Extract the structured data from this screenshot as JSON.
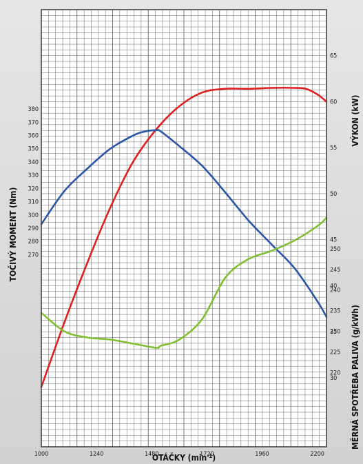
{
  "chart_data": {
    "type": "line",
    "x_axis": {
      "label": "OTÁČKY",
      "unit_base": "min",
      "unit_sup": "-1",
      "range": [
        1000,
        2240
      ],
      "ticks": [
        1000,
        1240,
        1480,
        1720,
        1960,
        2200
      ]
    },
    "power_axis": {
      "label": "VÝKON (kW)",
      "range": [
        22.5,
        70
      ],
      "ticks": [
        30,
        35,
        40,
        45,
        50,
        55,
        60,
        65
      ]
    },
    "torque_axis": {
      "label": "TOČIVÝ MOMENT (Nm)",
      "range": [
        125,
        455
      ],
      "ticks": [
        270,
        280,
        290,
        300,
        310,
        320,
        330,
        340,
        350,
        360,
        370,
        380
      ]
    },
    "consumption_axis": {
      "label": "MĚRNÁ SPOTŘEBA PALIVA (g/kWh)",
      "range": [
        202,
        308
      ],
      "ticks": [
        220,
        225,
        230,
        235,
        240,
        245,
        250
      ]
    },
    "series": [
      {
        "key": "power",
        "axis": "power_axis",
        "color": "#e02020",
        "x": [
          1000,
          1100,
          1200,
          1300,
          1400,
          1500,
          1600,
          1700,
          1800,
          1900,
          2000,
          2100,
          2150,
          2200,
          2240
        ],
        "y": [
          29,
          36,
          42.5,
          48.5,
          53.5,
          57,
          59.5,
          61,
          61.4,
          61.4,
          61.5,
          61.5,
          61.4,
          60.8,
          60
        ]
      },
      {
        "key": "torque",
        "axis": "torque_axis",
        "color": "#2a55a8",
        "x": [
          1000,
          1100,
          1200,
          1300,
          1400,
          1450,
          1500,
          1520,
          1600,
          1700,
          1800,
          1900,
          2000,
          2100,
          2200,
          2240
        ],
        "y": [
          293,
          318,
          335,
          350,
          360,
          363,
          364,
          363,
          352,
          337,
          317,
          296,
          278,
          260,
          235,
          223
        ]
      },
      {
        "key": "consumption",
        "axis": "consumption_axis",
        "color": "#80c030",
        "x": [
          1000,
          1100,
          1200,
          1300,
          1400,
          1500,
          1520,
          1600,
          1700,
          1800,
          1900,
          2000,
          2100,
          2200,
          2240
        ],
        "y": [
          234.5,
          230,
          228.5,
          228,
          227,
          226,
          226.5,
          228,
          233,
          243,
          247.5,
          249.5,
          252,
          255.5,
          257.5
        ]
      }
    ]
  }
}
